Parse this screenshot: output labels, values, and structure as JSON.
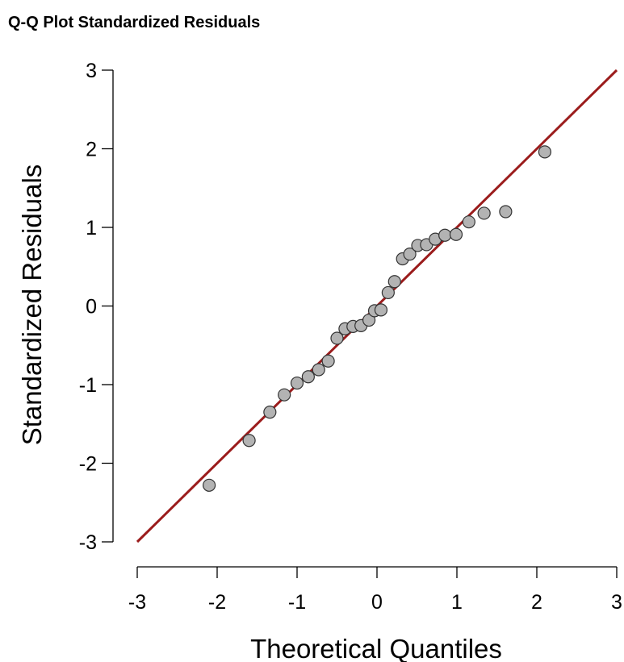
{
  "chart_data": {
    "type": "scatter",
    "title": "Q-Q Plot Standardized Residuals",
    "xlabel": "Theoretical Quantiles",
    "ylabel": "Standardized Residuals",
    "xlim": [
      -3,
      3
    ],
    "ylim": [
      -3,
      3
    ],
    "x_ticks": [
      "-3",
      "-2",
      "-1",
      "0",
      "1",
      "2",
      "3"
    ],
    "y_ticks": [
      "-3",
      "-2",
      "-1",
      "0",
      "1",
      "2",
      "3"
    ],
    "reference_line": {
      "from": [
        -3,
        -3
      ],
      "to": [
        3,
        3
      ],
      "color": "#9b1c1c"
    },
    "point_color": "#b3b3b3",
    "grid": false,
    "points": [
      {
        "x": -2.1,
        "y": -2.28
      },
      {
        "x": -1.6,
        "y": -1.71
      },
      {
        "x": -1.34,
        "y": -1.35
      },
      {
        "x": -1.16,
        "y": -1.13
      },
      {
        "x": -1.0,
        "y": -0.98
      },
      {
        "x": -0.86,
        "y": -0.9
      },
      {
        "x": -0.73,
        "y": -0.81
      },
      {
        "x": -0.61,
        "y": -0.7
      },
      {
        "x": -0.5,
        "y": -0.41
      },
      {
        "x": -0.4,
        "y": -0.29
      },
      {
        "x": -0.3,
        "y": -0.26
      },
      {
        "x": -0.2,
        "y": -0.25
      },
      {
        "x": -0.1,
        "y": -0.18
      },
      {
        "x": -0.03,
        "y": -0.06
      },
      {
        "x": 0.05,
        "y": -0.05
      },
      {
        "x": 0.14,
        "y": 0.17
      },
      {
        "x": 0.22,
        "y": 0.31
      },
      {
        "x": 0.32,
        "y": 0.6
      },
      {
        "x": 0.41,
        "y": 0.66
      },
      {
        "x": 0.51,
        "y": 0.77
      },
      {
        "x": 0.62,
        "y": 0.78
      },
      {
        "x": 0.73,
        "y": 0.85
      },
      {
        "x": 0.85,
        "y": 0.9
      },
      {
        "x": 0.99,
        "y": 0.91
      },
      {
        "x": 1.15,
        "y": 1.07
      },
      {
        "x": 1.34,
        "y": 1.18
      },
      {
        "x": 1.61,
        "y": 1.2
      },
      {
        "x": 2.1,
        "y": 1.96
      }
    ]
  }
}
